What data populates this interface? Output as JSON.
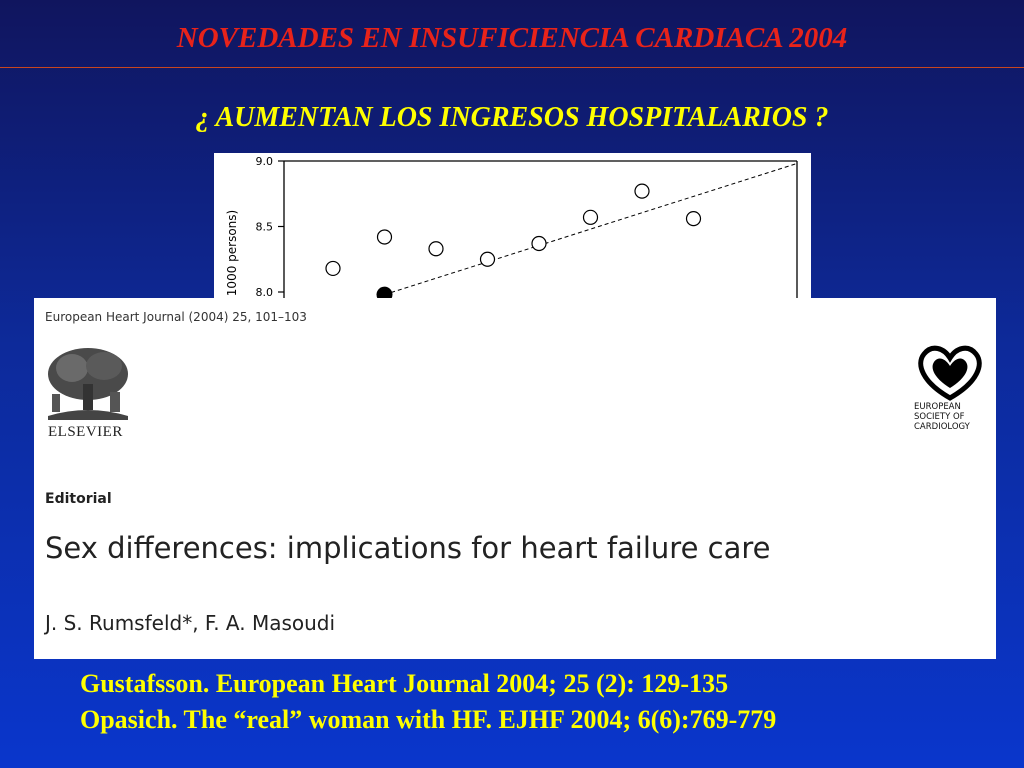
{
  "header": {
    "title": "NOVEDADES EN INSUFICIENCIA CARDIACA 2004",
    "subtitle": "¿ AUMENTAN LOS INGRESOS HOSPITALARIOS ?"
  },
  "chart_data": {
    "type": "scatter",
    "ylabel": "1000 persons)",
    "y_ticks": [
      "9.0",
      "8.5",
      "8.0"
    ],
    "ylim": [
      7.97,
      9.0
    ],
    "x": [
      1,
      2,
      3,
      4,
      5,
      6,
      7,
      8
    ],
    "series": [
      {
        "marker": "open-circle",
        "values": [
          8.18,
          8.42,
          8.33,
          8.25,
          8.37,
          8.57,
          8.77,
          8.56
        ]
      }
    ],
    "filled_point": {
      "x": 2,
      "y": 7.98
    },
    "trendline": {
      "style": "dashed",
      "from": [
        2,
        7.98
      ],
      "to": [
        10,
        8.98
      ]
    },
    "grid": false
  },
  "article": {
    "journal_ref": "European Heart Journal (2004) 25, 101–103",
    "publisher": "ELSEVIER",
    "society": [
      "EUROPEAN",
      "SOCIETY OF",
      "CARDIOLOGY"
    ],
    "section": "Editorial",
    "title": "Sex differences: implications for heart failure care",
    "authors": "J. S. Rumsfeld*, F. A. Masoudi"
  },
  "references": [
    "Gustafsson. European Heart Journal 2004; 25 (2): 129-135",
    "Opasich. The “real” woman with HF. EJHF 2004; 6(6):769-779"
  ]
}
